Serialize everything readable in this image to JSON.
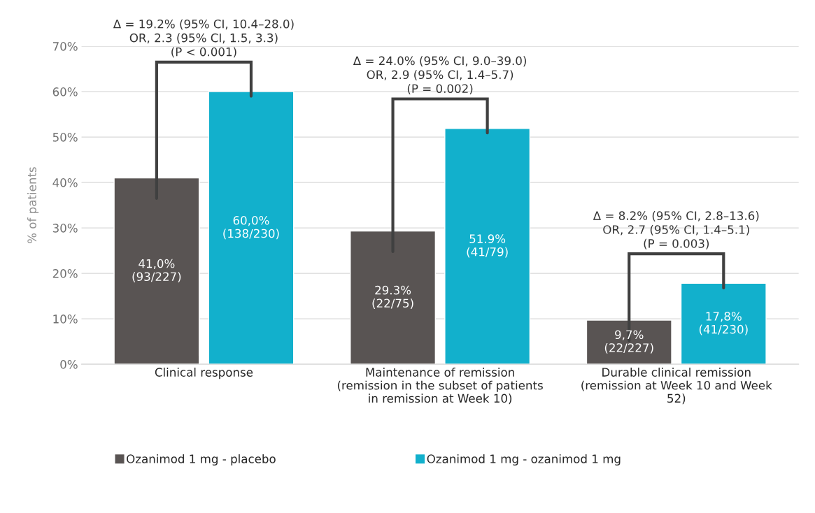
{
  "chart_data": {
    "type": "bar",
    "ylabel": "% of patients",
    "categories": [
      "Clinical response",
      "Maintenance of remission\n(remission in the subset of patients\nin remission at Week 10)",
      "Durable clinical remission\n(remission at Week 10 and Week\n52)"
    ],
    "series": [
      {
        "name": "Ozanimod 1 mg - placebo",
        "color": "#595453",
        "values": [
          41.0,
          29.3,
          9.7
        ],
        "value_labels": [
          "41,0%\n(93/227)",
          "29.3%\n(22/75)",
          "9,7%\n(22/227)"
        ]
      },
      {
        "name": "Ozanimod 1 mg - ozanimod 1 mg",
        "color": "#12b0cc",
        "values": [
          60.0,
          51.9,
          17.8
        ],
        "value_labels": [
          "60,0%\n(138/230)",
          "51.9%\n(41/79)",
          "17,8%\n(41/230)"
        ]
      }
    ],
    "annotations": [
      "Δ = 19.2% (95% CI, 10.4–28.0)\nOR, 2.3 (95% CI, 1.5, 3.3)\n(P < 0.001)",
      "Δ = 24.0% (95% CI, 9.0–39.0)\nOR, 2.9 (95% CI, 1.4–5.7)\n(P = 0.002)",
      "Δ = 8.2% (95% CI, 2.8–13.6)\nOR, 2.7 (95% CI, 1.4–5.1)\n(P = 0.003)"
    ],
    "ylim": [
      0,
      70
    ],
    "yticks": [
      {
        "value": 0,
        "label": "0%"
      },
      {
        "value": 10,
        "label": "10%"
      },
      {
        "value": 20,
        "label": "20%"
      },
      {
        "value": 30,
        "label": "30%"
      },
      {
        "value": 40,
        "label": "40%"
      },
      {
        "value": 50,
        "label": "50%"
      },
      {
        "value": 60,
        "label": "60%"
      },
      {
        "value": 70,
        "label": "70%"
      }
    ],
    "grid": "y",
    "legend": "bottom"
  }
}
